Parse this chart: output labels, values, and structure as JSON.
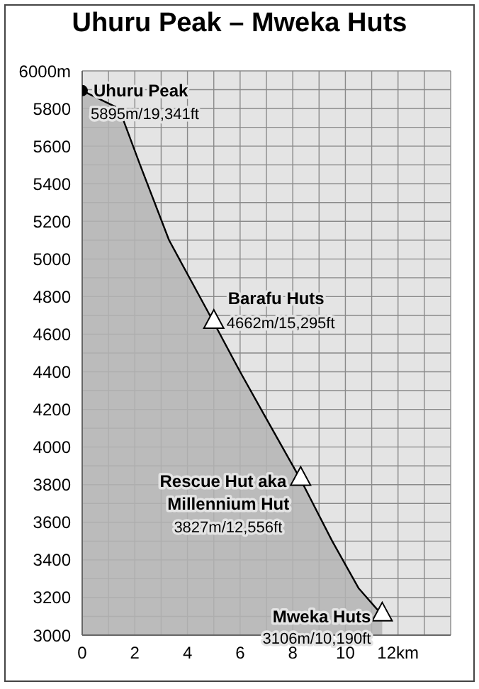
{
  "chart_data": {
    "type": "area",
    "title": "Uhuru Peak – Mweka Huts",
    "xlim": [
      0,
      14
    ],
    "xticks": [
      0,
      {
        "value": 1,
        "label": null
      },
      2,
      {
        "value": 3,
        "label": null
      },
      4,
      {
        "value": 5,
        "label": null
      },
      6,
      {
        "value": 7,
        "label": null
      },
      8,
      {
        "value": 9,
        "label": null
      },
      10,
      {
        "value": 11,
        "label": null
      },
      {
        "value": 12,
        "label": "12km"
      },
      {
        "value": 13,
        "label": null
      },
      {
        "value": 14,
        "label": null
      }
    ],
    "ylim": [
      3000,
      6000
    ],
    "yticks": [
      3000,
      {
        "value": 3100,
        "label": null
      },
      3200,
      {
        "value": 3300,
        "label": null
      },
      3400,
      {
        "value": 3500,
        "label": null
      },
      3600,
      {
        "value": 3700,
        "label": null
      },
      3800,
      {
        "value": 3900,
        "label": null
      },
      4000,
      {
        "value": 4100,
        "label": null
      },
      4200,
      {
        "value": 4300,
        "label": null
      },
      4400,
      {
        "value": 4500,
        "label": null
      },
      4600,
      {
        "value": 4700,
        "label": null
      },
      4800,
      {
        "value": 4900,
        "label": null
      },
      5000,
      {
        "value": 5100,
        "label": null
      },
      5200,
      {
        "value": 5300,
        "label": null
      },
      5400,
      {
        "value": 5500,
        "label": null
      },
      5600,
      {
        "value": 5700,
        "label": null
      },
      5800,
      {
        "value": 5900,
        "label": null
      },
      {
        "value": 6000,
        "label": "6000m"
      }
    ],
    "grid": true,
    "series": [
      {
        "color": "#000000",
        "x": [
          0,
          1.4,
          2.2,
          3.3,
          5.0,
          6.0,
          7.0,
          8.3,
          9.5,
          10.5,
          11.4
        ],
        "values": [
          5895,
          5800,
          5500,
          5100,
          4662,
          4400,
          4150,
          3827,
          3500,
          3250,
          3106
        ]
      },
      {
        "type": "scatter",
        "marker": "circle",
        "color": "#000000",
        "x": [
          0
        ],
        "values": [
          5895
        ]
      },
      {
        "type": "scatter",
        "marker": "triangle",
        "color": "#ffffff",
        "x": [
          5.0,
          8.3,
          11.4
        ],
        "values": [
          4662,
          3827,
          3106
        ]
      }
    ],
    "annotations": [
      {
        "text": "Uhuru Peak",
        "x": 0,
        "y": 5895
      },
      {
        "text": "5895m/19,341ft",
        "x": 0,
        "y": 5895
      },
      {
        "text": "Barafu Huts",
        "x": 5.0,
        "y": 4662
      },
      {
        "text": "4662m/15,295ft",
        "x": 5.0,
        "y": 4662
      },
      {
        "text": "Rescue Hut aka",
        "x": 8.3,
        "y": 3827
      },
      {
        "text": "Millennium Hut",
        "x": 8.3,
        "y": 3827
      },
      {
        "text": "3827m/12,556ft",
        "x": 8.3,
        "y": 3827
      },
      {
        "text": "Mweka Huts",
        "x": 11.4,
        "y": 3106
      },
      {
        "text": "3106m/10,190ft",
        "x": 11.4,
        "y": 3106
      }
    ]
  }
}
